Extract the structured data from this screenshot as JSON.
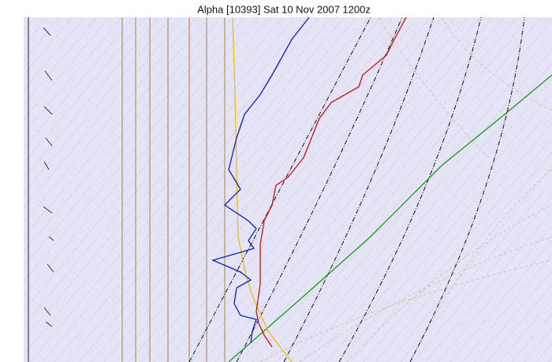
{
  "chart_data": {
    "type": "skewt",
    "title": "Alpha [10393] Sat 10 Nov 2007 1200z"
  }
}
